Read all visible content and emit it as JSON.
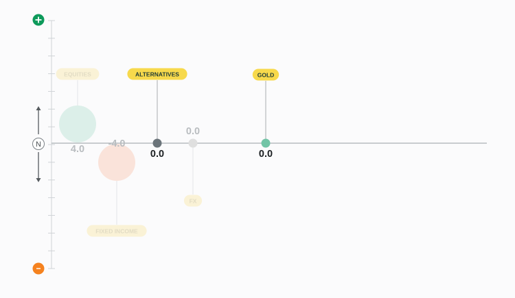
{
  "chart_data": {
    "type": "scatter",
    "title": "",
    "xlabel": "",
    "ylabel": "",
    "axis": {
      "neutral_label": "N",
      "top_icon": "plus-icon",
      "bottom_icon": "minus-icon",
      "top_color": "#0e9a5b",
      "bottom_color": "#f5821f",
      "ylim": [
        -10,
        10
      ]
    },
    "points": [
      {
        "label": "EQUITIES",
        "value": 4.0,
        "value_text": "4.0",
        "color": "#dcefe9",
        "label_bg": "#faf2d6",
        "label_color": "#e2dcc4",
        "faded": true,
        "size": "large"
      },
      {
        "label": "FIXED INCOME",
        "value": -4.0,
        "value_text": "-4.0",
        "color": "#fae3da",
        "label_bg": "#faf2d6",
        "label_color": "#e2dcc4",
        "faded": true,
        "size": "large"
      },
      {
        "label": "ALTERNATIVES",
        "value": 0.0,
        "value_text": "0.0",
        "color": "#6b747a",
        "label_bg": "#f7d94c",
        "label_color": "#1e3a35",
        "faded": false,
        "size": "small"
      },
      {
        "label": "FX",
        "value": 0.0,
        "value_text": "0.0",
        "color": "#dfdfdf",
        "label_bg": "#faf2d6",
        "label_color": "#e2dcc4",
        "faded": true,
        "size": "small"
      },
      {
        "label": "GOLD",
        "value": 0.0,
        "value_text": "0.0",
        "color": "#72c4a6",
        "label_bg": "#f7d94c",
        "label_color": "#1e3a35",
        "faded": false,
        "size": "small"
      }
    ]
  }
}
